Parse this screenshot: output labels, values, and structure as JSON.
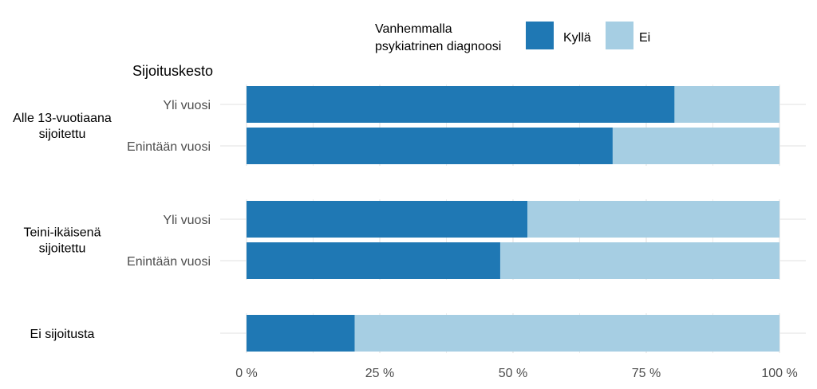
{
  "chart_data": {
    "type": "bar",
    "orientation": "horizontal",
    "stacked": true,
    "percent": true,
    "legend": {
      "title_lines": [
        "Vanhemmalla",
        "psykiatrinen diagnoosi"
      ],
      "position": "top-right",
      "items": [
        {
          "name": "Kyllä",
          "color": "#1f78b4"
        },
        {
          "name": "Ei",
          "color": "#a6cee3"
        }
      ]
    },
    "ylabel": "Sijoituskesto",
    "groups": [
      {
        "label_lines": [
          "Alle 13-vuotiaana",
          "sijoitettu"
        ],
        "bars": [
          {
            "label": "Yli vuosi",
            "values": {
              "Kyllä": 80.3,
              "Ei": 19.7
            }
          },
          {
            "label": "Enintään vuosi",
            "values": {
              "Kyllä": 68.7,
              "Ei": 31.3
            }
          }
        ]
      },
      {
        "label_lines": [
          "Teini-ikäisenä",
          "sijoitettu"
        ],
        "bars": [
          {
            "label": "Yli vuosi",
            "values": {
              "Kyllä": 52.7,
              "Ei": 47.3
            }
          },
          {
            "label": "Enintään vuosi",
            "values": {
              "Kyllä": 47.6,
              "Ei": 52.4
            }
          }
        ]
      },
      {
        "label_lines": [
          "Ei sijoitusta"
        ],
        "bars": [
          {
            "label": "",
            "values": {
              "Kyllä": 20.3,
              "Ei": 79.7
            }
          }
        ]
      }
    ],
    "xaxis": {
      "range": [
        0,
        100
      ],
      "ticks": [
        0,
        25,
        50,
        75,
        100
      ],
      "tick_labels": [
        "0 %",
        "25 %",
        "50 %",
        "75 %",
        "100 %"
      ]
    },
    "grid": true,
    "colors": {
      "grid": "#ebebeb",
      "kylla": "#1f78b4",
      "ei": "#a6cee3"
    }
  }
}
